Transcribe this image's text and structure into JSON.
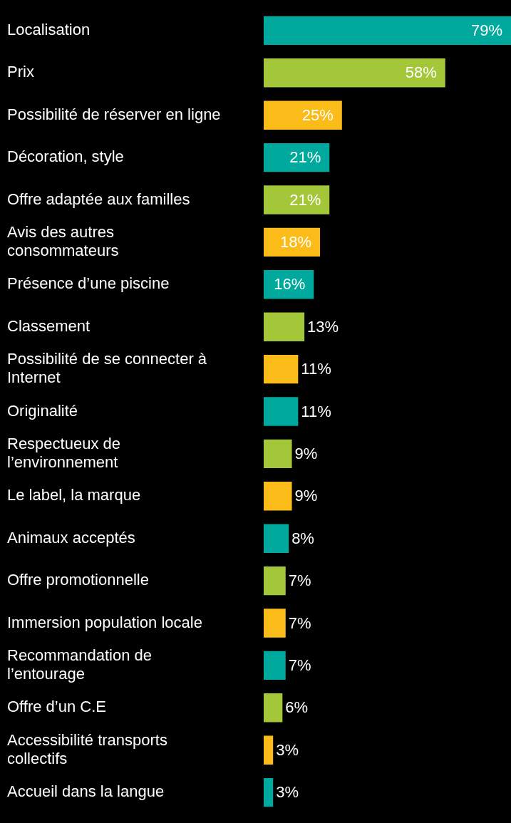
{
  "chart_data": {
    "type": "bar",
    "orientation": "horizontal",
    "categories": [
      "Localisation",
      "Prix",
      "Possibilité de réserver en ligne",
      "Décoration, style",
      "Offre adaptée aux familles",
      "Avis des autres consommateurs",
      "Présence d’une piscine",
      "Classement",
      "Possibilité de se connecter à Internet",
      "Originalité",
      "Respectueux de l’environnement",
      "Le label, la marque",
      "Animaux acceptés",
      "Offre promotionnelle",
      "Immersion population locale",
      "Recommandation de l’entourage",
      "Offre d’un C.E",
      "Accessibilité transports collectifs",
      "Accueil dans la langue"
    ],
    "values": [
      79,
      58,
      25,
      21,
      21,
      18,
      16,
      13,
      11,
      11,
      9,
      9,
      8,
      7,
      7,
      7,
      6,
      3,
      3
    ],
    "value_labels": [
      "79%",
      "58%",
      "25%",
      "21%",
      "21%",
      "18%",
      "16%",
      "13%",
      "11%",
      "11%",
      "9%",
      "9%",
      "8%",
      "7%",
      "7%",
      "7%",
      "6%",
      "3%",
      "3%"
    ],
    "colors": [
      "#00a99d",
      "#a4c639",
      "#fbbc1a",
      "#00a99d",
      "#a4c639",
      "#fbbc1a",
      "#00a99d",
      "#a4c639",
      "#fbbc1a",
      "#00a99d",
      "#a4c639",
      "#fbbc1a",
      "#00a99d",
      "#a4c639",
      "#fbbc1a",
      "#00a99d",
      "#a4c639",
      "#fbbc1a",
      "#00a99d"
    ]
  }
}
